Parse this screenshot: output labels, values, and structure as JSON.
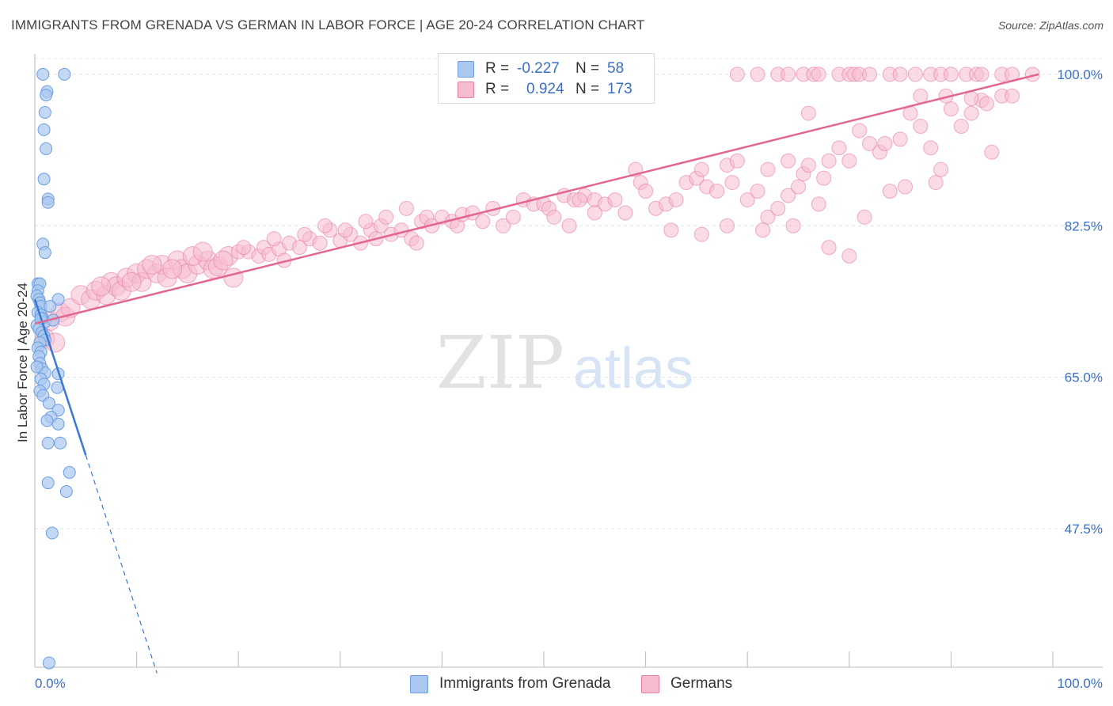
{
  "title": "IMMIGRANTS FROM GRENADA VS GERMAN IN LABOR FORCE | AGE 20-24 CORRELATION CHART",
  "source": "Source: ZipAtlas.com",
  "watermark": {
    "zip": "ZIP",
    "atlas": "atlas"
  },
  "legend": {
    "r_label": "R =",
    "n_label": "N =",
    "series": [
      {
        "name": "Immigrants from Grenada",
        "r": "-0.227",
        "n": "58",
        "color": "#6b9de0",
        "fill": "#aac8f0"
      },
      {
        "name": "Germans",
        "r": "0.924",
        "n": "173",
        "color": "#e87ba0",
        "fill": "#f6bcd0"
      }
    ]
  },
  "chart_data": {
    "type": "scatter",
    "title": "IMMIGRANTS FROM GRENADA VS GERMAN IN LABOR FORCE | AGE 20-24 CORRELATION CHART",
    "ylabel": "In Labor Force | Age 20-24",
    "xlabel": "",
    "xlim": [
      0,
      100
    ],
    "ylim": [
      31.5,
      102
    ],
    "x_tick_labels": [
      "0.0%",
      "100.0%"
    ],
    "y_ticks": [
      47.5,
      65.0,
      82.5,
      100.0
    ],
    "y_tick_labels": [
      "47.5%",
      "65.0%",
      "82.5%",
      "100.0%"
    ],
    "grid": true,
    "series": [
      {
        "name": "Immigrants from Grenada",
        "trend": {
          "x0": 0.0,
          "y0": 74.0,
          "x1": 5.0,
          "y1": 56.0,
          "dash_x1": 12.0
        },
        "points": [
          [
            0.8,
            100
          ],
          [
            2.9,
            100
          ],
          [
            1.2,
            98
          ],
          [
            1.1,
            97.6
          ],
          [
            1.0,
            95.6
          ],
          [
            0.9,
            93.6
          ],
          [
            1.1,
            91.4
          ],
          [
            0.9,
            87.9
          ],
          [
            1.3,
            85.6
          ],
          [
            1.3,
            85.2
          ],
          [
            0.8,
            80.4
          ],
          [
            1.0,
            79.4
          ],
          [
            0.3,
            75.8
          ],
          [
            0.5,
            75.8
          ],
          [
            0.3,
            75.0
          ],
          [
            0.2,
            74.4
          ],
          [
            0.4,
            74.0
          ],
          [
            0.5,
            73.6
          ],
          [
            0.6,
            73.2
          ],
          [
            2.3,
            74.0
          ],
          [
            1.5,
            73.2
          ],
          [
            0.3,
            72.5
          ],
          [
            0.6,
            72.2
          ],
          [
            0.8,
            71.8
          ],
          [
            1.0,
            71.4
          ],
          [
            1.8,
            71.6
          ],
          [
            0.2,
            71.0
          ],
          [
            0.4,
            70.6
          ],
          [
            0.7,
            70.2
          ],
          [
            0.9,
            69.8
          ],
          [
            1.0,
            69.3
          ],
          [
            0.5,
            69.0
          ],
          [
            0.3,
            68.4
          ],
          [
            0.6,
            67.9
          ],
          [
            0.4,
            67.4
          ],
          [
            0.5,
            66.6
          ],
          [
            0.7,
            66.0
          ],
          [
            1.0,
            65.5
          ],
          [
            0.6,
            64.8
          ],
          [
            0.9,
            64.2
          ],
          [
            2.3,
            65.4
          ],
          [
            2.2,
            63.8
          ],
          [
            0.5,
            63.4
          ],
          [
            0.8,
            62.9
          ],
          [
            1.4,
            62.0
          ],
          [
            2.3,
            61.2
          ],
          [
            1.6,
            60.4
          ],
          [
            1.2,
            60.0
          ],
          [
            2.3,
            59.6
          ],
          [
            1.3,
            57.4
          ],
          [
            2.5,
            57.4
          ],
          [
            3.4,
            54.0
          ],
          [
            1.3,
            52.8
          ],
          [
            3.1,
            51.8
          ],
          [
            1.7,
            47.0
          ],
          [
            1.4,
            32.0
          ],
          [
            0.2,
            66.2
          ],
          [
            0.6,
            71.8
          ]
        ]
      },
      {
        "name": "Germans",
        "trend": {
          "x0": 0.0,
          "y0": 71.2,
          "x1": 98.6,
          "y1": 100.0
        },
        "points": [
          [
            1.5,
            71.5
          ],
          [
            1.0,
            69.5
          ],
          [
            2.0,
            69.0
          ],
          [
            2.5,
            72.5
          ],
          [
            3.0,
            72.0
          ],
          [
            3.5,
            73.0
          ],
          [
            4.5,
            74.5
          ],
          [
            5.5,
            74.0
          ],
          [
            6.0,
            75.0
          ],
          [
            7.0,
            74.5
          ],
          [
            7.5,
            76.0
          ],
          [
            8.0,
            75.5
          ],
          [
            8.5,
            75.0
          ],
          [
            9.0,
            76.5
          ],
          [
            10.0,
            77.0
          ],
          [
            10.5,
            76.0
          ],
          [
            11.0,
            77.5
          ],
          [
            12.0,
            77.0
          ],
          [
            12.5,
            78.0
          ],
          [
            13.0,
            76.5
          ],
          [
            14.0,
            78.5
          ],
          [
            14.5,
            77.5
          ],
          [
            15.0,
            77.0
          ],
          [
            16.0,
            78.0
          ],
          [
            17.0,
            78.5
          ],
          [
            17.5,
            77.5
          ],
          [
            18.0,
            77.8
          ],
          [
            19.0,
            79.0
          ],
          [
            20.0,
            79.5
          ],
          [
            19.5,
            76.5
          ],
          [
            21.0,
            79.5
          ],
          [
            22.0,
            79.0
          ],
          [
            22.5,
            80.0
          ],
          [
            23.0,
            79.2
          ],
          [
            24.0,
            79.8
          ],
          [
            25.0,
            80.5
          ],
          [
            26.0,
            80.0
          ],
          [
            24.5,
            78.5
          ],
          [
            27.0,
            81.0
          ],
          [
            28.0,
            80.5
          ],
          [
            29.0,
            82.0
          ],
          [
            30.0,
            80.8
          ],
          [
            31.0,
            81.5
          ],
          [
            32.0,
            80.5
          ],
          [
            33.0,
            82.0
          ],
          [
            33.5,
            81.0
          ],
          [
            34.0,
            82.5
          ],
          [
            35.0,
            81.5
          ],
          [
            36.0,
            82.0
          ],
          [
            37.0,
            81.0
          ],
          [
            37.5,
            80.5
          ],
          [
            38.0,
            83.0
          ],
          [
            38.5,
            83.5
          ],
          [
            39.0,
            82.5
          ],
          [
            40.0,
            83.5
          ],
          [
            41.0,
            83.0
          ],
          [
            41.5,
            82.5
          ],
          [
            42.0,
            83.8
          ],
          [
            43.0,
            84.0
          ],
          [
            44.0,
            83.0
          ],
          [
            45.0,
            84.5
          ],
          [
            46.0,
            82.5
          ],
          [
            47.0,
            83.5
          ],
          [
            48.0,
            85.5
          ],
          [
            49.0,
            85.0
          ],
          [
            50.0,
            85.0
          ],
          [
            50.5,
            84.5
          ],
          [
            51.0,
            83.5
          ],
          [
            52.0,
            86.0
          ],
          [
            53.0,
            85.5
          ],
          [
            54.0,
            86.0
          ],
          [
            55.0,
            85.5
          ],
          [
            56.0,
            85.0
          ],
          [
            57.0,
            85.5
          ],
          [
            58.0,
            84.0
          ],
          [
            59.0,
            89.0
          ],
          [
            59.5,
            87.5
          ],
          [
            60.0,
            86.5
          ],
          [
            61.0,
            84.5
          ],
          [
            62.0,
            85.0
          ],
          [
            63.0,
            85.5
          ],
          [
            64.0,
            87.5
          ],
          [
            65.0,
            88.0
          ],
          [
            65.5,
            89.0
          ],
          [
            66.0,
            87.0
          ],
          [
            67.0,
            86.5
          ],
          [
            68.0,
            89.5
          ],
          [
            68.5,
            87.5
          ],
          [
            69.0,
            90.0
          ],
          [
            70.0,
            85.5
          ],
          [
            71.0,
            86.5
          ],
          [
            72.0,
            83.5
          ],
          [
            73.0,
            84.5
          ],
          [
            74.0,
            86.0
          ],
          [
            75.0,
            87.0
          ],
          [
            75.5,
            88.5
          ],
          [
            76.0,
            89.5
          ],
          [
            77.0,
            85.0
          ],
          [
            77.5,
            88.0
          ],
          [
            78.0,
            90.0
          ],
          [
            79.0,
            91.5
          ],
          [
            80.0,
            90.0
          ],
          [
            81.0,
            93.5
          ],
          [
            82.0,
            92.0
          ],
          [
            83.0,
            91.0
          ],
          [
            84.0,
            86.5
          ],
          [
            85.0,
            92.5
          ],
          [
            86.0,
            95.5
          ],
          [
            87.0,
            94.0
          ],
          [
            88.0,
            91.5
          ],
          [
            88.5,
            87.5
          ],
          [
            89.0,
            89.0
          ],
          [
            90.0,
            96.0
          ],
          [
            91.0,
            94.0
          ],
          [
            92.0,
            95.5
          ],
          [
            93.0,
            97.0
          ],
          [
            94.0,
            91.0
          ],
          [
            95.0,
            97.5
          ],
          [
            96.0,
            97.5
          ],
          [
            62.5,
            82.0
          ],
          [
            65.5,
            81.5
          ],
          [
            68.0,
            82.5
          ],
          [
            71.5,
            82.0
          ],
          [
            74.5,
            82.5
          ],
          [
            78.0,
            80.0
          ],
          [
            80.0,
            79.0
          ],
          [
            81.5,
            83.5
          ],
          [
            85.5,
            87.0
          ],
          [
            72.0,
            89.0
          ],
          [
            74.0,
            90.0
          ],
          [
            76.0,
            95.5
          ],
          [
            83.5,
            92.0
          ],
          [
            55.0,
            84.0
          ],
          [
            53.5,
            85.5
          ],
          [
            52.5,
            82.5
          ],
          [
            69.0,
            100
          ],
          [
            71.0,
            100
          ],
          [
            73.0,
            100
          ],
          [
            74.0,
            100
          ],
          [
            75.5,
            100
          ],
          [
            76.5,
            100
          ],
          [
            77.0,
            100
          ],
          [
            79.0,
            100
          ],
          [
            80.0,
            100
          ],
          [
            80.5,
            100
          ],
          [
            81.0,
            100
          ],
          [
            82.0,
            100
          ],
          [
            84.0,
            100
          ],
          [
            85.0,
            100
          ],
          [
            86.5,
            100
          ],
          [
            88.0,
            100
          ],
          [
            89.0,
            100
          ],
          [
            90.0,
            100
          ],
          [
            91.5,
            100
          ],
          [
            92.5,
            100
          ],
          [
            93.0,
            100
          ],
          [
            95.0,
            100
          ],
          [
            96.0,
            100
          ],
          [
            98.0,
            100
          ],
          [
            87.0,
            97.5
          ],
          [
            89.5,
            97.5
          ],
          [
            92.0,
            97.2
          ],
          [
            93.5,
            96.6
          ],
          [
            6.5,
            75.5
          ],
          [
            9.5,
            76.0
          ],
          [
            11.5,
            78.0
          ],
          [
            13.5,
            77.5
          ],
          [
            15.5,
            79.0
          ],
          [
            16.5,
            79.5
          ],
          [
            18.5,
            78.5
          ],
          [
            20.5,
            80.0
          ],
          [
            23.5,
            81.0
          ],
          [
            26.5,
            81.5
          ],
          [
            28.5,
            82.5
          ],
          [
            30.5,
            82.0
          ],
          [
            32.5,
            83.0
          ],
          [
            34.5,
            83.5
          ],
          [
            36.5,
            84.5
          ]
        ]
      }
    ]
  }
}
